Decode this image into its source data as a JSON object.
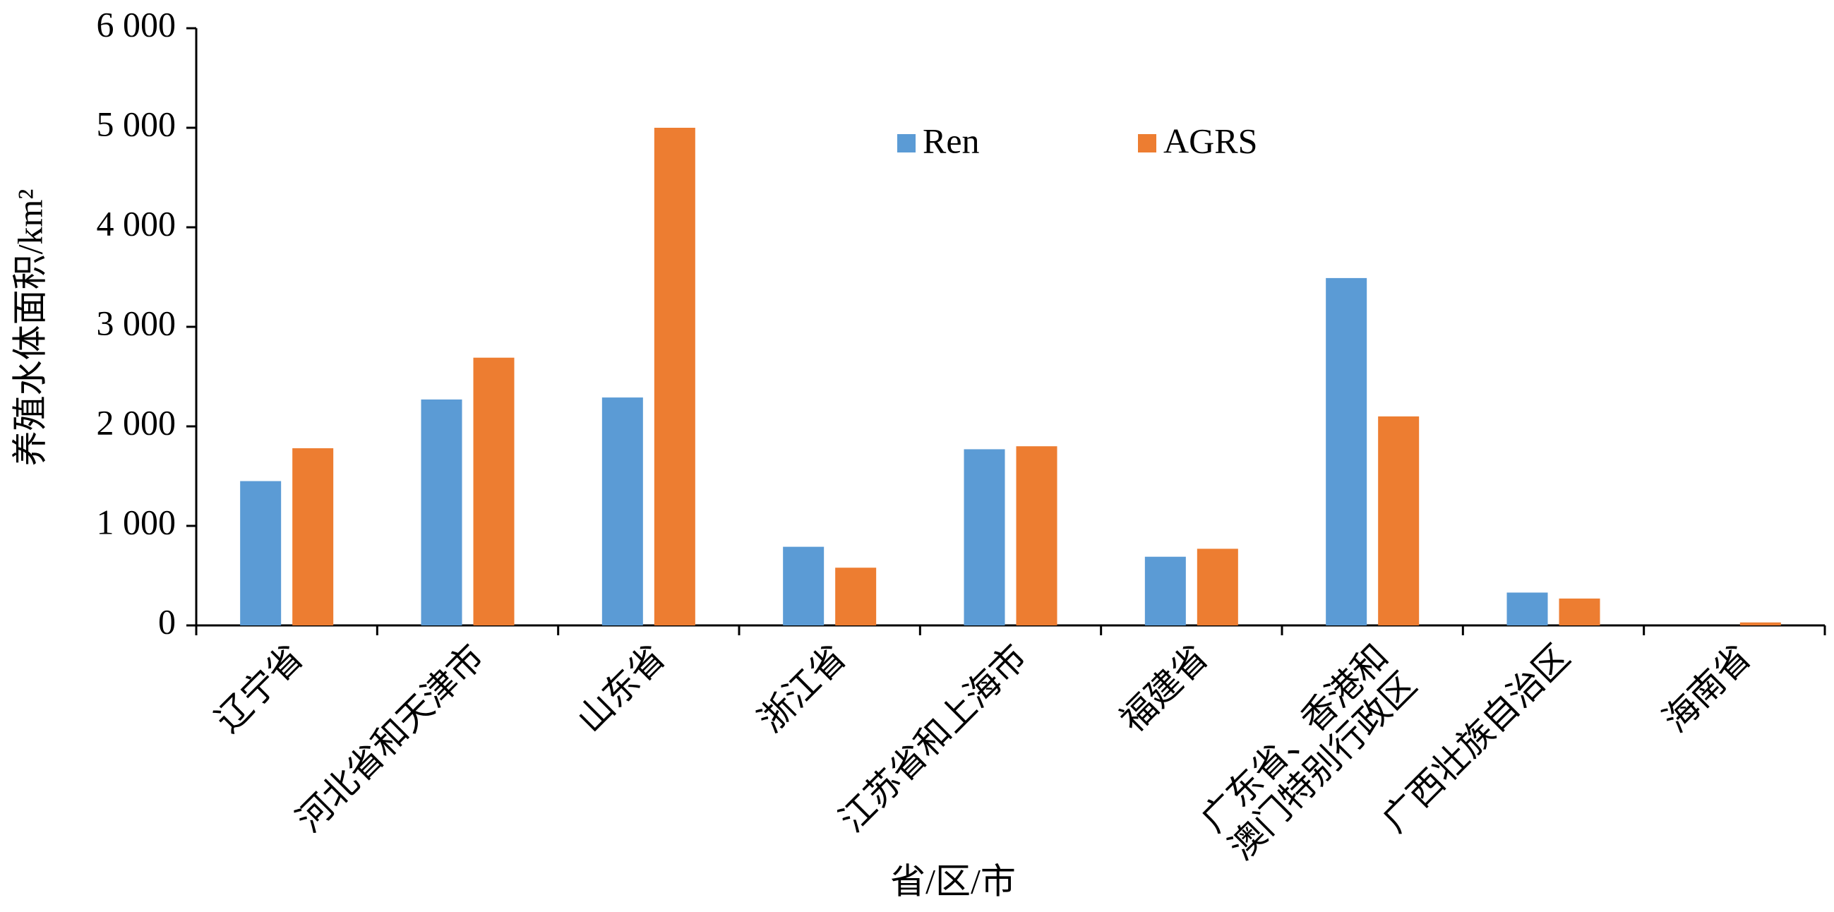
{
  "chart_data": {
    "type": "bar",
    "y_label": "养殖水体面积/km²",
    "x_label": "省/区/市",
    "categories": [
      "辽宁省",
      "河北省和天津市",
      "山东省",
      "浙江省",
      "江苏省和上海市",
      "福建省",
      "广东省、香港和\n澳门特别行政区",
      "广西壮族自治区",
      "海南省"
    ],
    "series": [
      {
        "name": "Ren",
        "color": "#5b9bd5",
        "values": [
          1450,
          2270,
          2290,
          790,
          1770,
          690,
          3490,
          330,
          0
        ]
      },
      {
        "name": "AGRS",
        "color": "#ed7d31",
        "values": [
          1780,
          2690,
          5000,
          580,
          1800,
          770,
          2100,
          270,
          30
        ]
      }
    ],
    "ylim": [
      0,
      6000
    ],
    "yticks": [
      0,
      {
        "value": 1000,
        "label": "1 000"
      },
      {
        "value": 2000,
        "label": "2 000"
      },
      {
        "value": 3000,
        "label": "3 000"
      },
      {
        "value": 4000,
        "label": "4 000"
      },
      {
        "value": 5000,
        "label": "5 000"
      },
      {
        "value": 6000,
        "label": "6 000"
      }
    ],
    "grid": false,
    "legend": "top"
  }
}
